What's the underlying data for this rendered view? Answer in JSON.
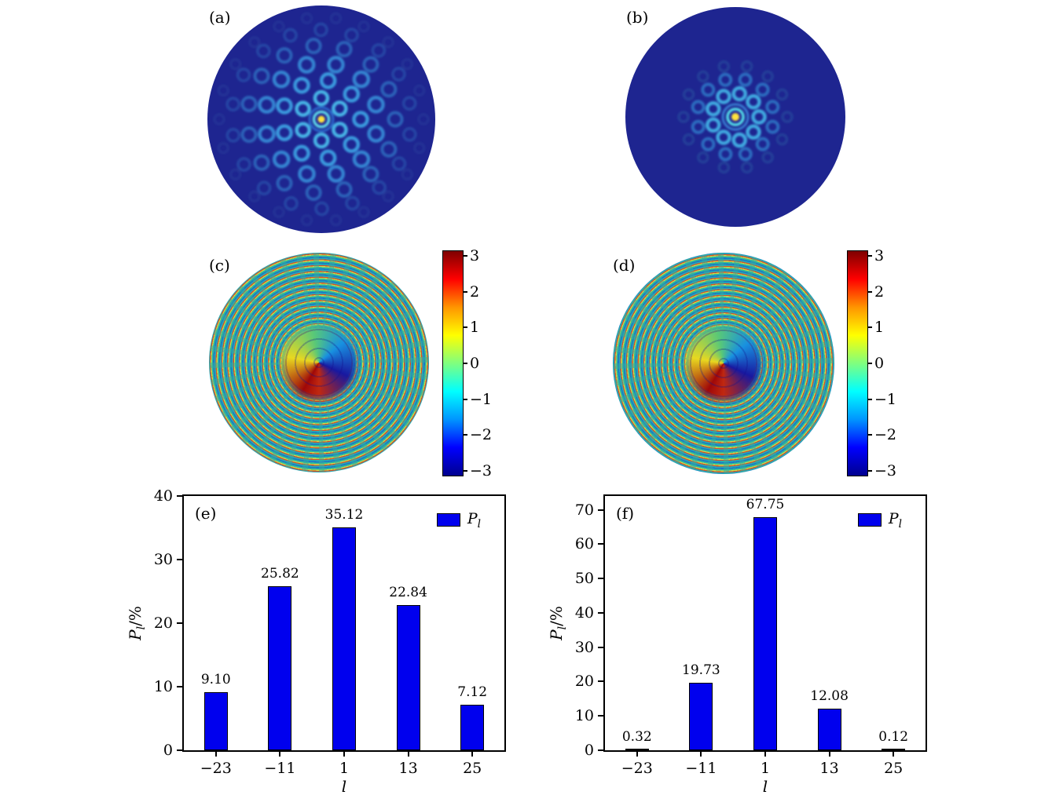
{
  "figure": {
    "panels": {
      "a": {
        "label": "(a)"
      },
      "b": {
        "label": "(b)"
      },
      "c": {
        "label": "(c)"
      },
      "d": {
        "label": "(d)"
      },
      "e": {
        "label": "(e)"
      },
      "f": {
        "label": "(f)"
      }
    },
    "colorbar": {
      "tick_labels": [
        "3",
        "2",
        "1",
        "0",
        "−1",
        "−2",
        "−3"
      ],
      "tick_values": [
        3,
        2,
        1,
        0,
        -1,
        -2,
        -3
      ]
    },
    "colors": {
      "bar_blue": "#0000ee",
      "disc_background": "#1e2590"
    }
  },
  "chart_data": [
    {
      "type": "bar",
      "panel": "(e)",
      "categories": [
        "−23",
        "−11",
        "1",
        "13",
        "25"
      ],
      "values": [
        9.1,
        25.82,
        35.12,
        22.84,
        7.12
      ],
      "xlabel": "l",
      "ylabel": {
        "sym": "P",
        "sub": "l",
        "rest": "/%"
      },
      "legend": {
        "sym": "P",
        "sub": "l"
      },
      "ylim": [
        0,
        40
      ],
      "yticks": [
        0,
        10,
        20,
        30,
        40
      ],
      "grid": false,
      "legend_position": "top-right",
      "bar_color": "#0000ee"
    },
    {
      "type": "bar",
      "panel": "(f)",
      "categories": [
        "−23",
        "−11",
        "1",
        "13",
        "25"
      ],
      "values": [
        0.32,
        19.73,
        67.75,
        12.08,
        0.12
      ],
      "xlabel": "l",
      "ylabel": {
        "sym": "P",
        "sub": "l",
        "rest": "/%"
      },
      "legend": {
        "sym": "P",
        "sub": "l"
      },
      "ylim": [
        0,
        74
      ],
      "yticks": [
        0,
        10,
        20,
        30,
        40,
        50,
        60,
        70
      ],
      "grid": false,
      "legend_position": "top-right",
      "bar_color": "#0000ee"
    }
  ]
}
